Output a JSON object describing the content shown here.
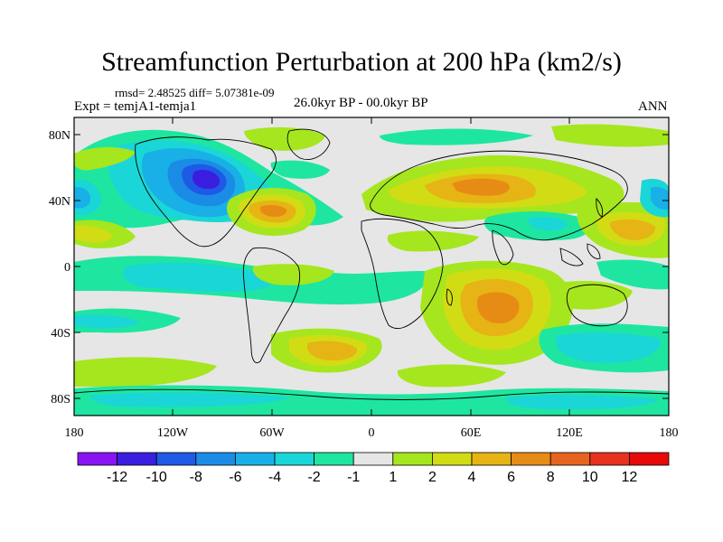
{
  "title": "Streamfunction Perturbation at 200 hPa (km2/s)",
  "stats": "rmsd= 2.48525 diff= 5.07381e-09",
  "experiment": "Expt = temjA1-temja1",
  "period": "26.0kyr BP - 00.0kyr BP",
  "season": "ANN",
  "lat_ticks": [
    "80N",
    "40N",
    "0",
    "40S",
    "80S"
  ],
  "lon_ticks": [
    "180",
    "120W",
    "60W",
    "0",
    "60E",
    "120E",
    "180"
  ],
  "colorbar": {
    "labels": [
      "-12",
      "-10",
      "-8",
      "-6",
      "-4",
      "-2",
      "-1",
      "1",
      "2",
      "4",
      "6",
      "8",
      "10",
      "12"
    ],
    "colors": [
      "#8a14f0",
      "#3a1ee0",
      "#1e5ae6",
      "#1a8ce6",
      "#18b0e6",
      "#1ad6d6",
      "#1ee6a0",
      "#e6e6e6",
      "#a6e61e",
      "#d2dc14",
      "#e6b414",
      "#e68c14",
      "#e6641e",
      "#e6321e",
      "#e60a0a"
    ]
  },
  "palette": {
    "background": "#e6e6e6",
    "neg1": "#1ee6a0",
    "neg2": "#1ad6d6",
    "neg4": "#18b0e6",
    "neg6": "#1a8ce6",
    "neg8": "#1e5ae6",
    "neg10": "#3a1ee0",
    "pos1": "#a6e61e",
    "pos2": "#d2dc14",
    "pos4": "#e6b414",
    "pos6": "#e68c14"
  }
}
